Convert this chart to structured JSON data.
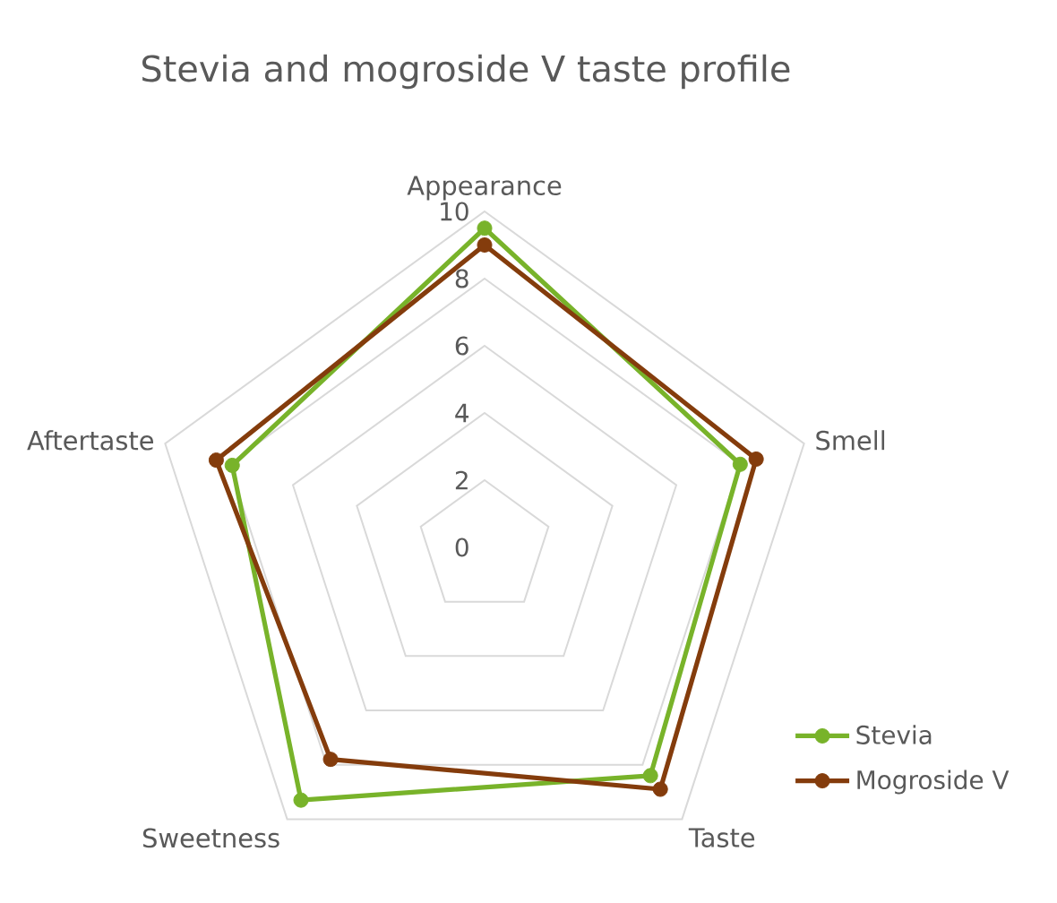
{
  "chart_data": {
    "type": "radar",
    "title": "Stevia and mogroside V taste profile",
    "categories": [
      "Appearance",
      "Smell",
      "Taste",
      "Sweetness",
      "Aftertaste"
    ],
    "series": [
      {
        "name": "Stevia",
        "color": "#78b32a",
        "values": [
          9.5,
          8.0,
          8.4,
          9.3,
          7.9
        ]
      },
      {
        "name": "Mogroside V",
        "color": "#843c0c",
        "values": [
          9.0,
          8.5,
          8.9,
          7.8,
          8.4
        ]
      }
    ],
    "ylim": [
      0,
      10
    ],
    "yticks": [
      0,
      2,
      4,
      6,
      8,
      10
    ],
    "grid": true,
    "legend": "bottom right",
    "marker": "circle",
    "line_style": "solid"
  }
}
